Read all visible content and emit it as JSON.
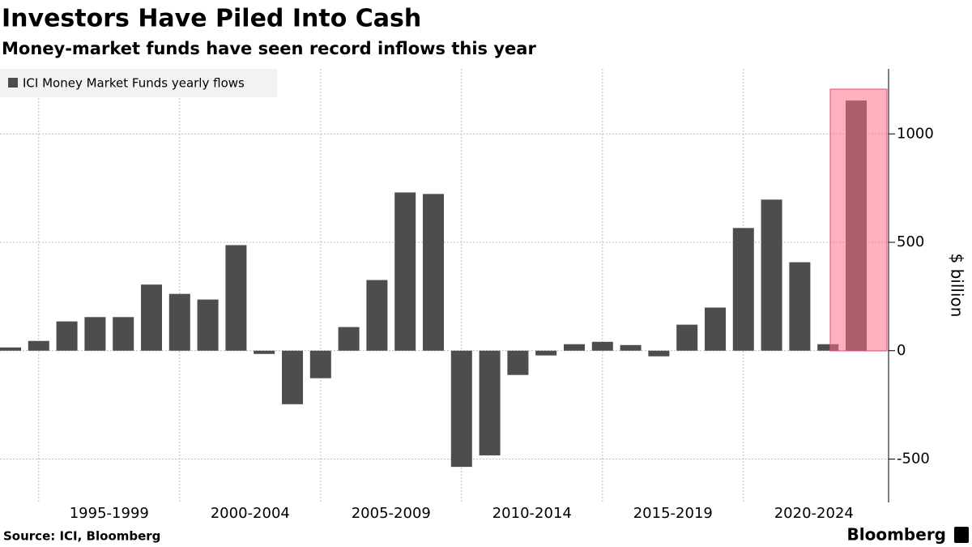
{
  "chart_data": {
    "type": "bar",
    "title": "Investors Have Piled Into Cash",
    "subtitle": "Money-market funds have seen record inflows this year",
    "legend_label": "ICI Money Market Funds yearly flows",
    "y_axis_label": "$ billion",
    "source": "Source: ICI, Bloomberg",
    "brand": "Bloomberg",
    "categories": [
      null,
      null,
      null,
      null,
      null,
      null,
      null,
      null,
      null,
      null,
      null,
      null,
      null,
      null,
      null,
      null,
      null,
      null,
      null,
      null,
      null,
      null,
      null,
      null,
      null,
      null,
      null,
      null,
      null,
      null,
      null
    ],
    "group_labels": [
      "1995-1999",
      "2000-2004",
      "2005-2009",
      "2010-2014",
      "2015-2019",
      "2020-2024"
    ],
    "values": [
      15,
      45,
      135,
      155,
      155,
      305,
      262,
      236,
      487,
      -15,
      -247,
      -127,
      109,
      326,
      730,
      723,
      -536,
      -483,
      -112,
      -22,
      30,
      41,
      26,
      -26,
      120,
      199,
      566,
      697,
      408,
      30,
      1154
    ],
    "color": "#4d4d4d",
    "ylim": [
      -700,
      1300
    ],
    "yticks": [
      -500,
      0,
      500,
      1000
    ],
    "grid": true
  }
}
